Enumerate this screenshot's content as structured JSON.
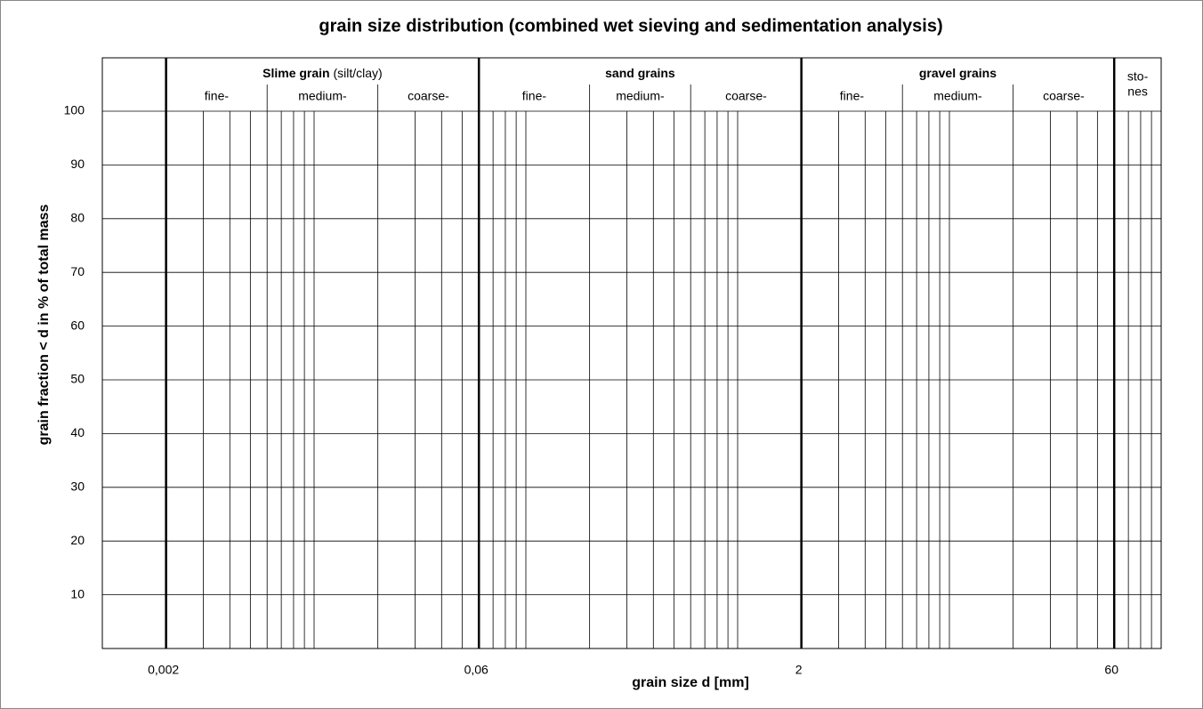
{
  "chart_data": {
    "type": "grain-size-grid",
    "title": "grain size distribution (combined wet sieving and sedimentation analysis)",
    "x_label": "grain size d [mm]",
    "y_label": "grain fraction < d in % of total mass",
    "xscale": "log",
    "xlim": [
      0.001,
      100
    ],
    "ylim": [
      0,
      100
    ],
    "xticks": [
      {
        "value": 0.002,
        "label": "0,002"
      },
      {
        "value": 0.06,
        "label": "0,06"
      },
      2,
      60
    ],
    "yticks": [
      10,
      20,
      30,
      40,
      50,
      60,
      70,
      80,
      90,
      100
    ],
    "grid": true,
    "xgrid": [
      0.003,
      0.004,
      0.005,
      0.007,
      0.008,
      0.009,
      0.01,
      0.03,
      0.04,
      0.05,
      0.07,
      0.08,
      0.09,
      0.1,
      0.3,
      0.4,
      0.5,
      0.7,
      0.8,
      0.9,
      1,
      3,
      4,
      5,
      7,
      8,
      9,
      10,
      30,
      40,
      50,
      70,
      80,
      90
    ],
    "fractions": [
      {
        "name": "Slime grain",
        "note": "(silt/clay)",
        "parts": [
          "fine-",
          "medium-",
          "coarse-"
        ],
        "sub_bounds": [
          0.006,
          0.02
        ]
      },
      {
        "name": "sand grains",
        "parts": [
          "fine-",
          "medium-",
          "coarse-"
        ],
        "sub_bounds": [
          0.2,
          0.6
        ]
      },
      {
        "name": "gravel grains",
        "parts": [
          "fine-",
          "medium-",
          "coarse-"
        ],
        "sub_bounds": [
          6,
          20
        ]
      },
      {
        "name_lines": [
          "sto-",
          "nes"
        ]
      }
    ]
  }
}
